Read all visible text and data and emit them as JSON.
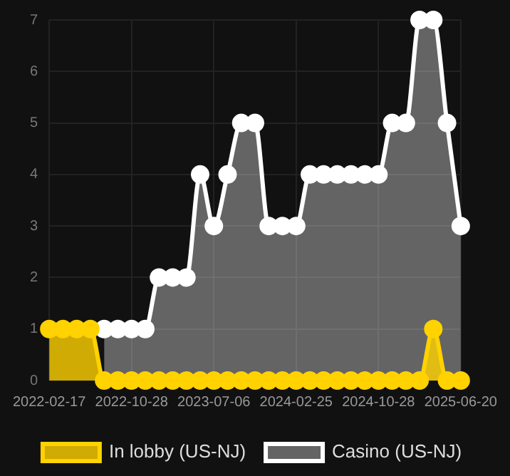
{
  "chart_data": {
    "type": "area",
    "categories": [
      "2022-02-17",
      null,
      null,
      null,
      null,
      null,
      "2022-10-28",
      null,
      null,
      null,
      null,
      null,
      "2023-07-06",
      null,
      null,
      null,
      null,
      null,
      "2024-02-25",
      null,
      null,
      null,
      null,
      null,
      "2024-10-28",
      null,
      null,
      null,
      null,
      null,
      "2025-06-20"
    ],
    "series": [
      {
        "name": "In lobby (US-NJ)",
        "color": "#ffd200",
        "values": [
          1,
          1,
          1,
          1,
          0,
          0,
          0,
          0,
          0,
          0,
          0,
          0,
          0,
          0,
          0,
          0,
          0,
          0,
          0,
          0,
          0,
          0,
          0,
          0,
          0,
          0,
          0,
          0,
          1,
          0,
          0
        ]
      },
      {
        "name": "Casino (US-NJ)",
        "color": "#ffffff",
        "values": [
          null,
          null,
          null,
          null,
          1,
          1,
          1,
          1,
          2,
          2,
          2,
          4,
          3,
          4,
          5,
          5,
          3,
          3,
          3,
          4,
          4,
          4,
          4,
          4,
          4,
          5,
          5,
          7,
          7,
          5,
          3
        ]
      }
    ],
    "ylim": [
      0,
      7
    ],
    "yticks": [
      0,
      1,
      2,
      3,
      4,
      5,
      6,
      7
    ],
    "grid": true,
    "legend": "bottom",
    "marker": "circle"
  }
}
